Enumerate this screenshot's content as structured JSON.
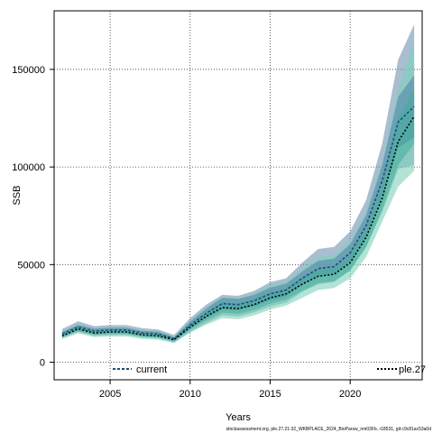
{
  "chart_data": {
    "type": "line",
    "xlabel": "Years",
    "ylabel": "SSB",
    "xlim": [
      2001.5,
      2024.5
    ],
    "ylim": [
      -9000,
      180000
    ],
    "xticks": [
      2005,
      2010,
      2015,
      2020
    ],
    "yticks": [
      0,
      50000,
      100000,
      150000
    ],
    "grid": true,
    "legend_placement": "bottom",
    "x": [
      2002,
      2003,
      2004,
      2005,
      2006,
      2007,
      2008,
      2009,
      2010,
      2011,
      2012,
      2013,
      2014,
      2015,
      2016,
      2017,
      2018,
      2019,
      2020,
      2021,
      2022,
      2023,
      2024
    ],
    "series": [
      {
        "name": "current",
        "color": "#1f4e79",
        "dash": "3,2",
        "values": [
          14500,
          18000,
          16000,
          16500,
          16500,
          15000,
          14500,
          12000,
          19000,
          25000,
          30000,
          29500,
          31500,
          35000,
          37000,
          43000,
          48000,
          49000,
          56000,
          70000,
          93000,
          123000,
          131000
        ],
        "lower_outer": [
          12500,
          15500,
          13500,
          14000,
          14000,
          12800,
          12300,
          10200,
          15500,
          20000,
          24000,
          23500,
          25500,
          28500,
          30500,
          36000,
          40000,
          41000,
          47000,
          59000,
          77000,
          99000,
          101000
        ],
        "upper_outer": [
          17000,
          21000,
          18500,
          19000,
          19000,
          17500,
          16800,
          14000,
          22500,
          29500,
          34500,
          34000,
          36500,
          41000,
          43000,
          51000,
          58000,
          59000,
          67000,
          83000,
          112000,
          155000,
          173000
        ],
        "lower_inner": [
          13500,
          16800,
          14800,
          15300,
          15300,
          13900,
          13400,
          11100,
          17200,
          22500,
          27000,
          26500,
          28500,
          31800,
          33800,
          39500,
          44000,
          45000,
          51500,
          64500,
          85000,
          110000,
          115000
        ],
        "upper_inner": [
          15500,
          19200,
          17200,
          17700,
          17700,
          16100,
          15600,
          12900,
          20800,
          27500,
          33000,
          32500,
          34500,
          38200,
          40200,
          46500,
          52000,
          53000,
          60500,
          75500,
          101000,
          136000,
          147000
        ],
        "band_outer_color": "#6f93b3",
        "band_inner_color": "#4f7fa8"
      },
      {
        "name": "ple.27",
        "color": "#000000",
        "dash": "2,2",
        "values": [
          13500,
          17000,
          15000,
          15500,
          15500,
          14000,
          13500,
          11500,
          18000,
          23500,
          28000,
          27500,
          29500,
          33000,
          35000,
          40000,
          44000,
          45000,
          51000,
          64000,
          84000,
          113000,
          126000
        ],
        "lower_outer": [
          11800,
          14800,
          12800,
          13200,
          13200,
          11900,
          11500,
          9800,
          15200,
          19200,
          22500,
          22000,
          24000,
          27000,
          29000,
          33000,
          37000,
          38000,
          43000,
          54000,
          72000,
          90000,
          98000
        ],
        "upper_outer": [
          15800,
          19500,
          17400,
          17900,
          17900,
          16300,
          15700,
          13300,
          21200,
          28000,
          33500,
          33000,
          35500,
          39500,
          41500,
          48000,
          54000,
          55000,
          62500,
          77000,
          103000,
          140000,
          165000
        ],
        "lower_inner": [
          12700,
          15800,
          13900,
          14400,
          14400,
          12900,
          12500,
          10600,
          16500,
          21300,
          25300,
          24800,
          26700,
          30000,
          32000,
          36500,
          40500,
          41500,
          47000,
          59000,
          78000,
          101000,
          112000
        ],
        "upper_inner": [
          14500,
          18200,
          16100,
          16600,
          16600,
          15100,
          14500,
          12400,
          19600,
          25800,
          30800,
          30200,
          32400,
          36000,
          38000,
          43500,
          47500,
          48500,
          55000,
          69000,
          90000,
          125000,
          140000
        ],
        "band_outer_color": "#7fd0b9",
        "band_inner_color": "#3fae99"
      }
    ]
  },
  "footer_text": "stockassessment.org, ple.27.21-32_WKBPLACE_2024_BioParsw_nm03Fb, r18531, git:c9c81ac53a0d"
}
